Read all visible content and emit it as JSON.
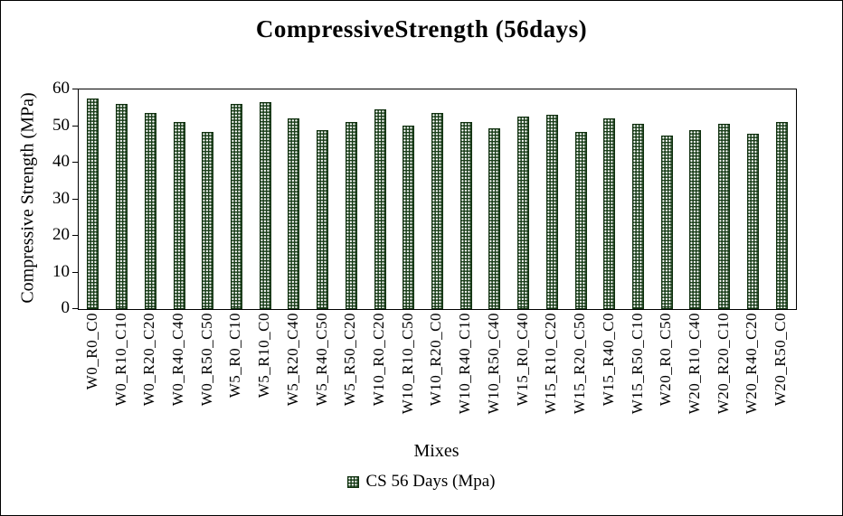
{
  "chart_data": {
    "type": "bar",
    "title": "CompressiveStrength (56days)",
    "xlabel": "Mixes",
    "ylabel": "Compressive Strength (MPa)",
    "ylim": [
      0,
      60
    ],
    "yticks": [
      0,
      10,
      20,
      30,
      40,
      50,
      60
    ],
    "grid": false,
    "legend_position": "bottom",
    "legend_label": "CS 56 Days (Mpa)",
    "bar_color": "#1c401c",
    "bar_pattern": "white-dots",
    "categories": [
      "W0_R0_C0",
      "W0_R10_C10",
      "W0_R20_C20",
      "W0_R40_C40",
      "W0_R50_C50",
      "W5_R0_C10",
      "W5_R10_C0",
      "W5_R20_C40",
      "W5_R40_C50",
      "W5_R50_C20",
      "W10_R0_C20",
      "W10_R10_C50",
      "W10_R20_C0",
      "W10_R40_C10",
      "W10_R50_C40",
      "W15_R0_C40",
      "W15_R10_C20",
      "W15_R20_C50",
      "W15_R40_C0",
      "W15_R50_C10",
      "W20_R0_C50",
      "W20_R10_C40",
      "W20_R20_C10",
      "W20_R40_C20",
      "W20_R50_C0"
    ],
    "values": [
      57.5,
      56,
      53.5,
      51,
      48.5,
      56,
      56.5,
      52,
      49,
      51,
      54.5,
      50,
      53.5,
      51,
      49.5,
      52.5,
      53,
      48.5,
      52,
      50.5,
      47.5,
      49,
      50.5,
      48,
      51
    ]
  }
}
